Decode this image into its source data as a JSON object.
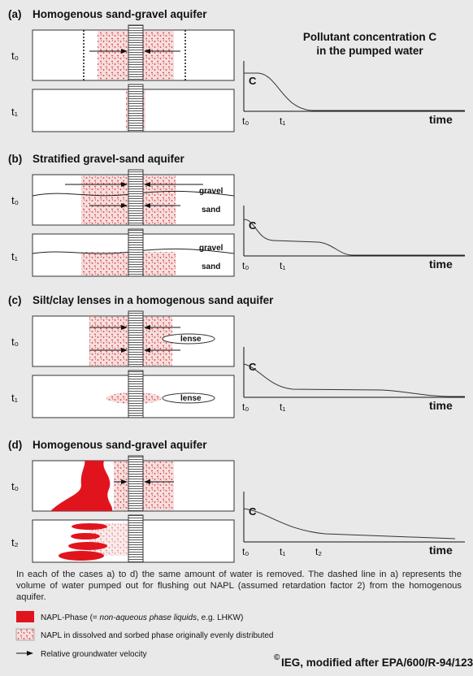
{
  "heading": {
    "line1": "Pollutant concentration C",
    "line2": "in the pumped water"
  },
  "panels": [
    {
      "label": "(a)",
      "title": "Homogenous sand-gravel aquifer",
      "rows": [
        "t₀",
        "t₁"
      ],
      "layer_labels": [],
      "axis": {
        "y": "C",
        "x": "time",
        "ticks": [
          "t₀",
          "t₁"
        ]
      }
    },
    {
      "label": "(b)",
      "title": "Stratified gravel-sand aquifer",
      "rows": [
        "t₀",
        "t₁"
      ],
      "layer_labels": [
        "gravel",
        "sand",
        "gravel",
        "sand"
      ],
      "axis": {
        "y": "C",
        "x": "time",
        "ticks": [
          "t₀",
          "t₁"
        ]
      }
    },
    {
      "label": "(c)",
      "title": "Silt/clay lenses in a homogenous sand aquifer",
      "rows": [
        "t₀",
        "t₁"
      ],
      "layer_labels": [
        "lense",
        "lense"
      ],
      "axis": {
        "y": "C",
        "x": "time",
        "ticks": [
          "t₀",
          "t₁"
        ]
      }
    },
    {
      "label": "(d)",
      "title": "Homogenous sand-gravel aquifer",
      "rows": [
        "t₀",
        "t₂"
      ],
      "layer_labels": [],
      "axis": {
        "y": "C",
        "x": "time",
        "ticks": [
          "t₀",
          "t₁",
          "t₂"
        ]
      }
    }
  ],
  "note": "In each of the cases a) to d) the same amount of water is removed. The dashed line in a) represents the volume of water pumped out for flushing out NAPL (assumed retardation factor 2) from the homogenous aquifer.",
  "legend": {
    "napl": {
      "start": "NAPL-Phase (= ",
      "italic": "non-aqueous phase liquids",
      "end": ", e.g. LHKW)"
    },
    "dissolved": "NAPL in dissolved and sorbed phase originally evenly distributed",
    "velocity": "Relative groundwater velocity"
  },
  "credit": {
    "symbol": "©",
    "text": "IEG, modified after EPA/600/R-94/123"
  }
}
